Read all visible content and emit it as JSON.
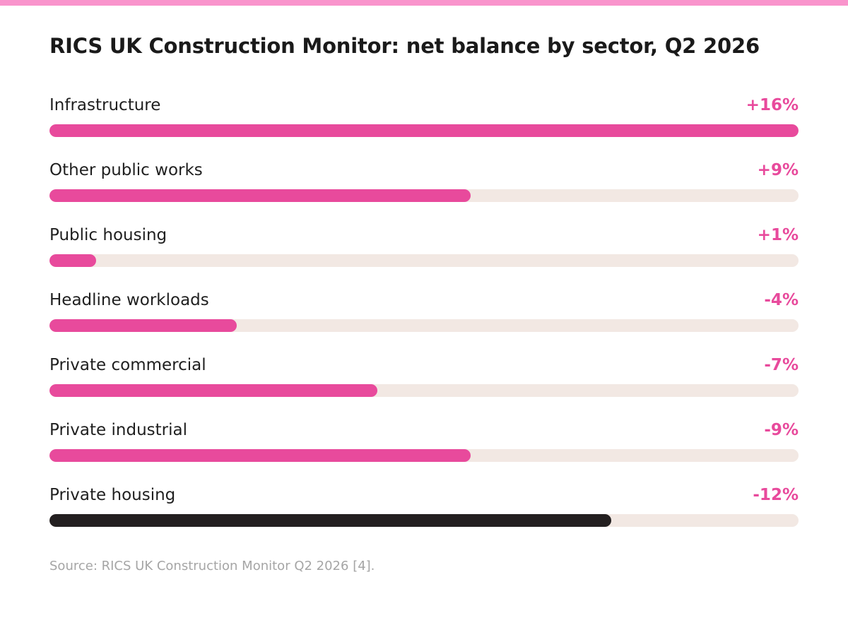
{
  "colors": {
    "accent": "#e84a9c",
    "highlight": "#231f20",
    "track": "#f2e8e3",
    "stripe": "#f994cc"
  },
  "chart_data": {
    "type": "bar",
    "orientation": "horizontal",
    "title": "RICS UK Construction Monitor: net balance by sector, Q2 2026",
    "unit": "%",
    "categories": [
      "Infrastructure",
      "Other public works",
      "Public housing",
      "Headline workloads",
      "Private commercial",
      "Private industrial",
      "Private housing"
    ],
    "value_labels": [
      "+16%",
      "+9%",
      "+1%",
      "-4%",
      "-7%",
      "-9%",
      "-12%"
    ],
    "values": [
      16,
      9,
      1,
      -4,
      -7,
      -9,
      -12
    ],
    "bar_magnitudes": [
      16,
      9,
      1,
      4,
      7,
      9,
      12
    ],
    "xlim": [
      0,
      16
    ],
    "highlighted": "Private housing",
    "grid": false,
    "legend": "none"
  },
  "source": "Source: RICS UK Construction Monitor Q2 2026 [4]."
}
